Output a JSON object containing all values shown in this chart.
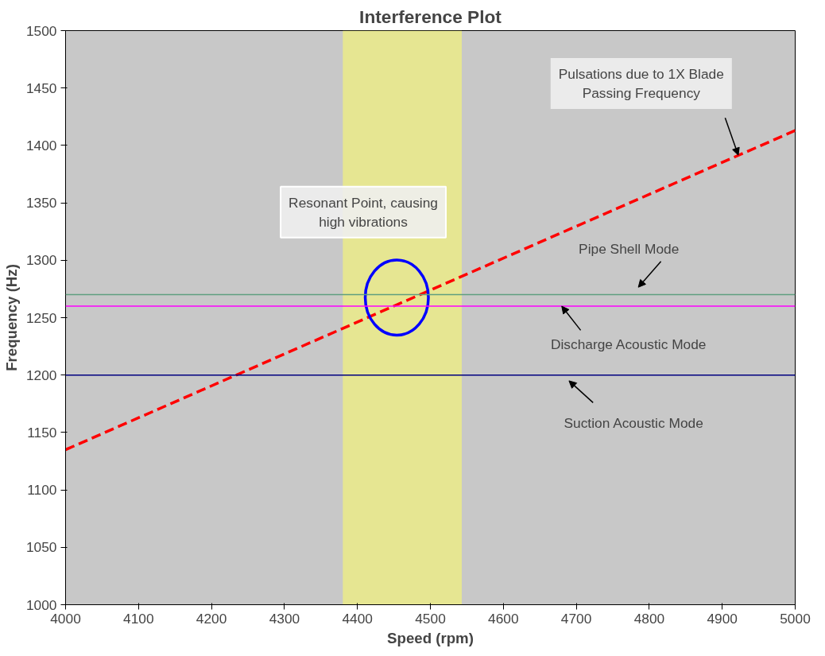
{
  "chart_data": {
    "type": "line",
    "title": "Interference Plot",
    "xlabel": "Speed (rpm)",
    "ylabel": "Frequency (Hz)",
    "xlim": [
      4000,
      5000
    ],
    "xticks": [
      4000,
      4100,
      4200,
      4300,
      4400,
      4500,
      4600,
      4700,
      4800,
      4900,
      5000
    ],
    "ylim": [
      1000,
      1500
    ],
    "yticks": [
      1000,
      1050,
      1100,
      1150,
      1200,
      1250,
      1300,
      1350,
      1400,
      1450,
      1500
    ],
    "grid": false,
    "line_style": "dashed",
    "marker": "none",
    "series": [
      {
        "color": "#ff0000",
        "x": [
          4000,
          5000
        ],
        "values": [
          1135,
          1413
        ]
      }
    ],
    "ref_lines": [
      {
        "axis": "y",
        "value": 1270,
        "color": "#5f9f7f"
      },
      {
        "axis": "y",
        "value": 1260,
        "color": "#ff00ff"
      },
      {
        "axis": "y",
        "value": 1200,
        "color": "#000080"
      }
    ],
    "bands": [
      {
        "axis": "x",
        "from": 4380,
        "to": 4543,
        "color": "#ffff66"
      }
    ],
    "annotations": [
      "Pulsations due to 1X Blade\nPassing Frequency",
      "Resonant Point, causing\nhigh vibrations",
      "Pipe Shell Mode",
      {
        "text": "Discharge Acoustic Mode",
        "x": 4680,
        "y": 1260
      },
      "Suction Acoustic Mode"
    ]
  }
}
